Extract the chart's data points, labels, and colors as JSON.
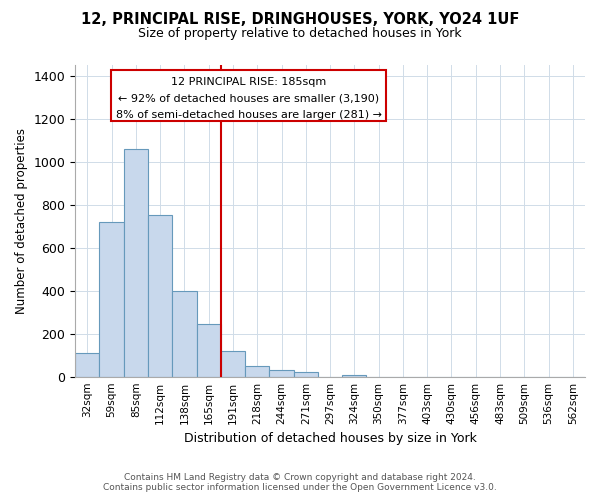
{
  "title": "12, PRINCIPAL RISE, DRINGHOUSES, YORK, YO24 1UF",
  "subtitle": "Size of property relative to detached houses in York",
  "xlabel": "Distribution of detached houses by size in York",
  "ylabel": "Number of detached properties",
  "categories": [
    "32sqm",
    "59sqm",
    "85sqm",
    "112sqm",
    "138sqm",
    "165sqm",
    "191sqm",
    "218sqm",
    "244sqm",
    "271sqm",
    "297sqm",
    "324sqm",
    "350sqm",
    "377sqm",
    "403sqm",
    "430sqm",
    "456sqm",
    "483sqm",
    "509sqm",
    "536sqm",
    "562sqm"
  ],
  "values": [
    110,
    720,
    1060,
    750,
    400,
    245,
    120,
    50,
    30,
    20,
    0,
    10,
    0,
    0,
    0,
    0,
    0,
    0,
    0,
    0,
    0
  ],
  "bar_color": "#c8d8ec",
  "bar_edge_color": "#6699bb",
  "ylim": [
    0,
    1450
  ],
  "yticks": [
    0,
    200,
    400,
    600,
    800,
    1000,
    1200,
    1400
  ],
  "marker_index": 6,
  "marker_color": "#cc0000",
  "annotation_line1": "12 PRINCIPAL RISE: 185sqm",
  "annotation_line2": "← 92% of detached houses are smaller (3,190)",
  "annotation_line3": "8% of semi-detached houses are larger (281) →",
  "footer_line1": "Contains HM Land Registry data © Crown copyright and database right 2024.",
  "footer_line2": "Contains public sector information licensed under the Open Government Licence v3.0.",
  "bg_color": "#ffffff",
  "plot_bg_color": "#ffffff",
  "grid_color": "#d0dce8"
}
